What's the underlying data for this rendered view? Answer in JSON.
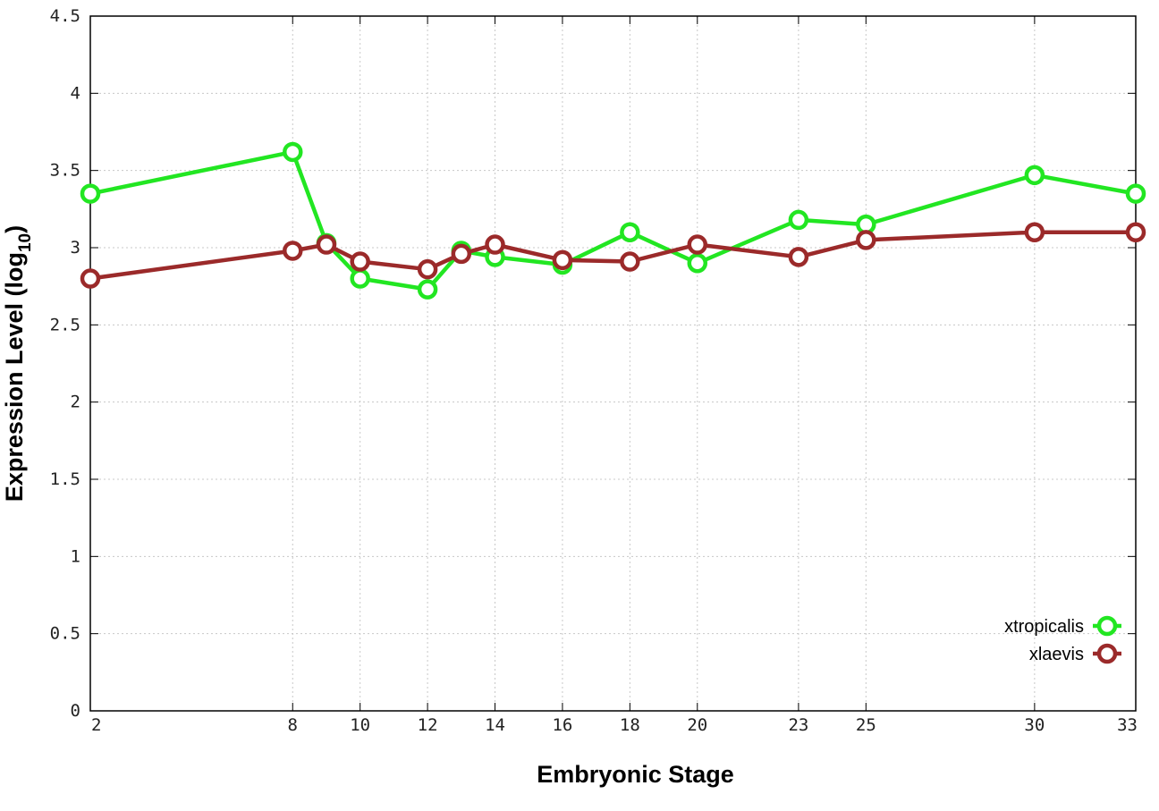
{
  "chart_data": {
    "type": "line",
    "title": "",
    "xlabel": "Embryonic Stage",
    "ylabel_main": "Expression Level (log",
    "ylabel_sub": "10",
    "ylabel_close": ")",
    "x": [
      2,
      8,
      9,
      10,
      12,
      13,
      14,
      16,
      18,
      20,
      23,
      25,
      30,
      33
    ],
    "x_ticks": [
      2,
      8,
      10,
      12,
      14,
      16,
      18,
      20,
      23,
      25,
      30,
      33
    ],
    "x_tick_labels": [
      "2",
      "8",
      "10",
      "12",
      "14",
      "16",
      "18",
      "20",
      "23",
      "25",
      "30",
      "33"
    ],
    "y_ticks": [
      0,
      0.5,
      1,
      1.5,
      2,
      2.5,
      3,
      3.5,
      4,
      4.5
    ],
    "y_tick_labels": [
      "0",
      "0.5",
      "1",
      "1.5",
      "2",
      "2.5",
      "3",
      "3.5",
      "4",
      "4.5"
    ],
    "xlim": [
      2,
      33
    ],
    "ylim": [
      0,
      4.5
    ],
    "grid": true,
    "legend_position": "bottom-right",
    "series": [
      {
        "name": "xtropicalis",
        "color": "#22e622",
        "values": [
          3.35,
          3.62,
          3.03,
          2.8,
          2.73,
          2.98,
          2.94,
          2.89,
          3.1,
          2.9,
          3.18,
          3.15,
          3.47,
          3.35
        ]
      },
      {
        "name": "xlaevis",
        "color": "#9b2a2a",
        "values": [
          2.8,
          2.98,
          3.02,
          2.91,
          2.86,
          2.96,
          3.02,
          2.92,
          2.91,
          3.02,
          2.94,
          3.05,
          3.1,
          3.1
        ]
      }
    ]
  }
}
